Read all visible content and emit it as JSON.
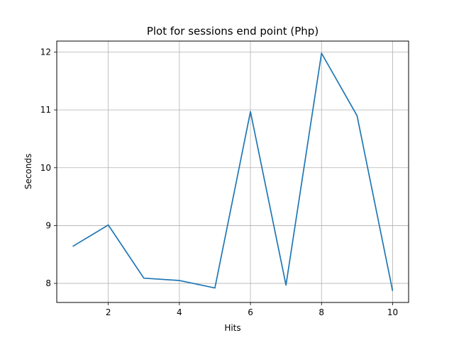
{
  "chart_data": {
    "type": "line",
    "title": "Plot for sessions end point (Php)",
    "xlabel": "Hits",
    "ylabel": "Seconds",
    "x": [
      1,
      2,
      3,
      4,
      5,
      6,
      7,
      8,
      9,
      10
    ],
    "series": [
      {
        "values": [
          8.64,
          9.01,
          8.09,
          8.05,
          7.92,
          10.97,
          7.97,
          11.98,
          10.9,
          7.87
        ],
        "color": "#1f77b4"
      }
    ],
    "xlim": [
      0.55,
      10.45
    ],
    "ylim": [
      7.67,
      12.19
    ],
    "xticks": [
      2,
      4,
      6,
      8,
      10
    ],
    "yticks": [
      8,
      9,
      10,
      11,
      12
    ],
    "grid": true
  }
}
